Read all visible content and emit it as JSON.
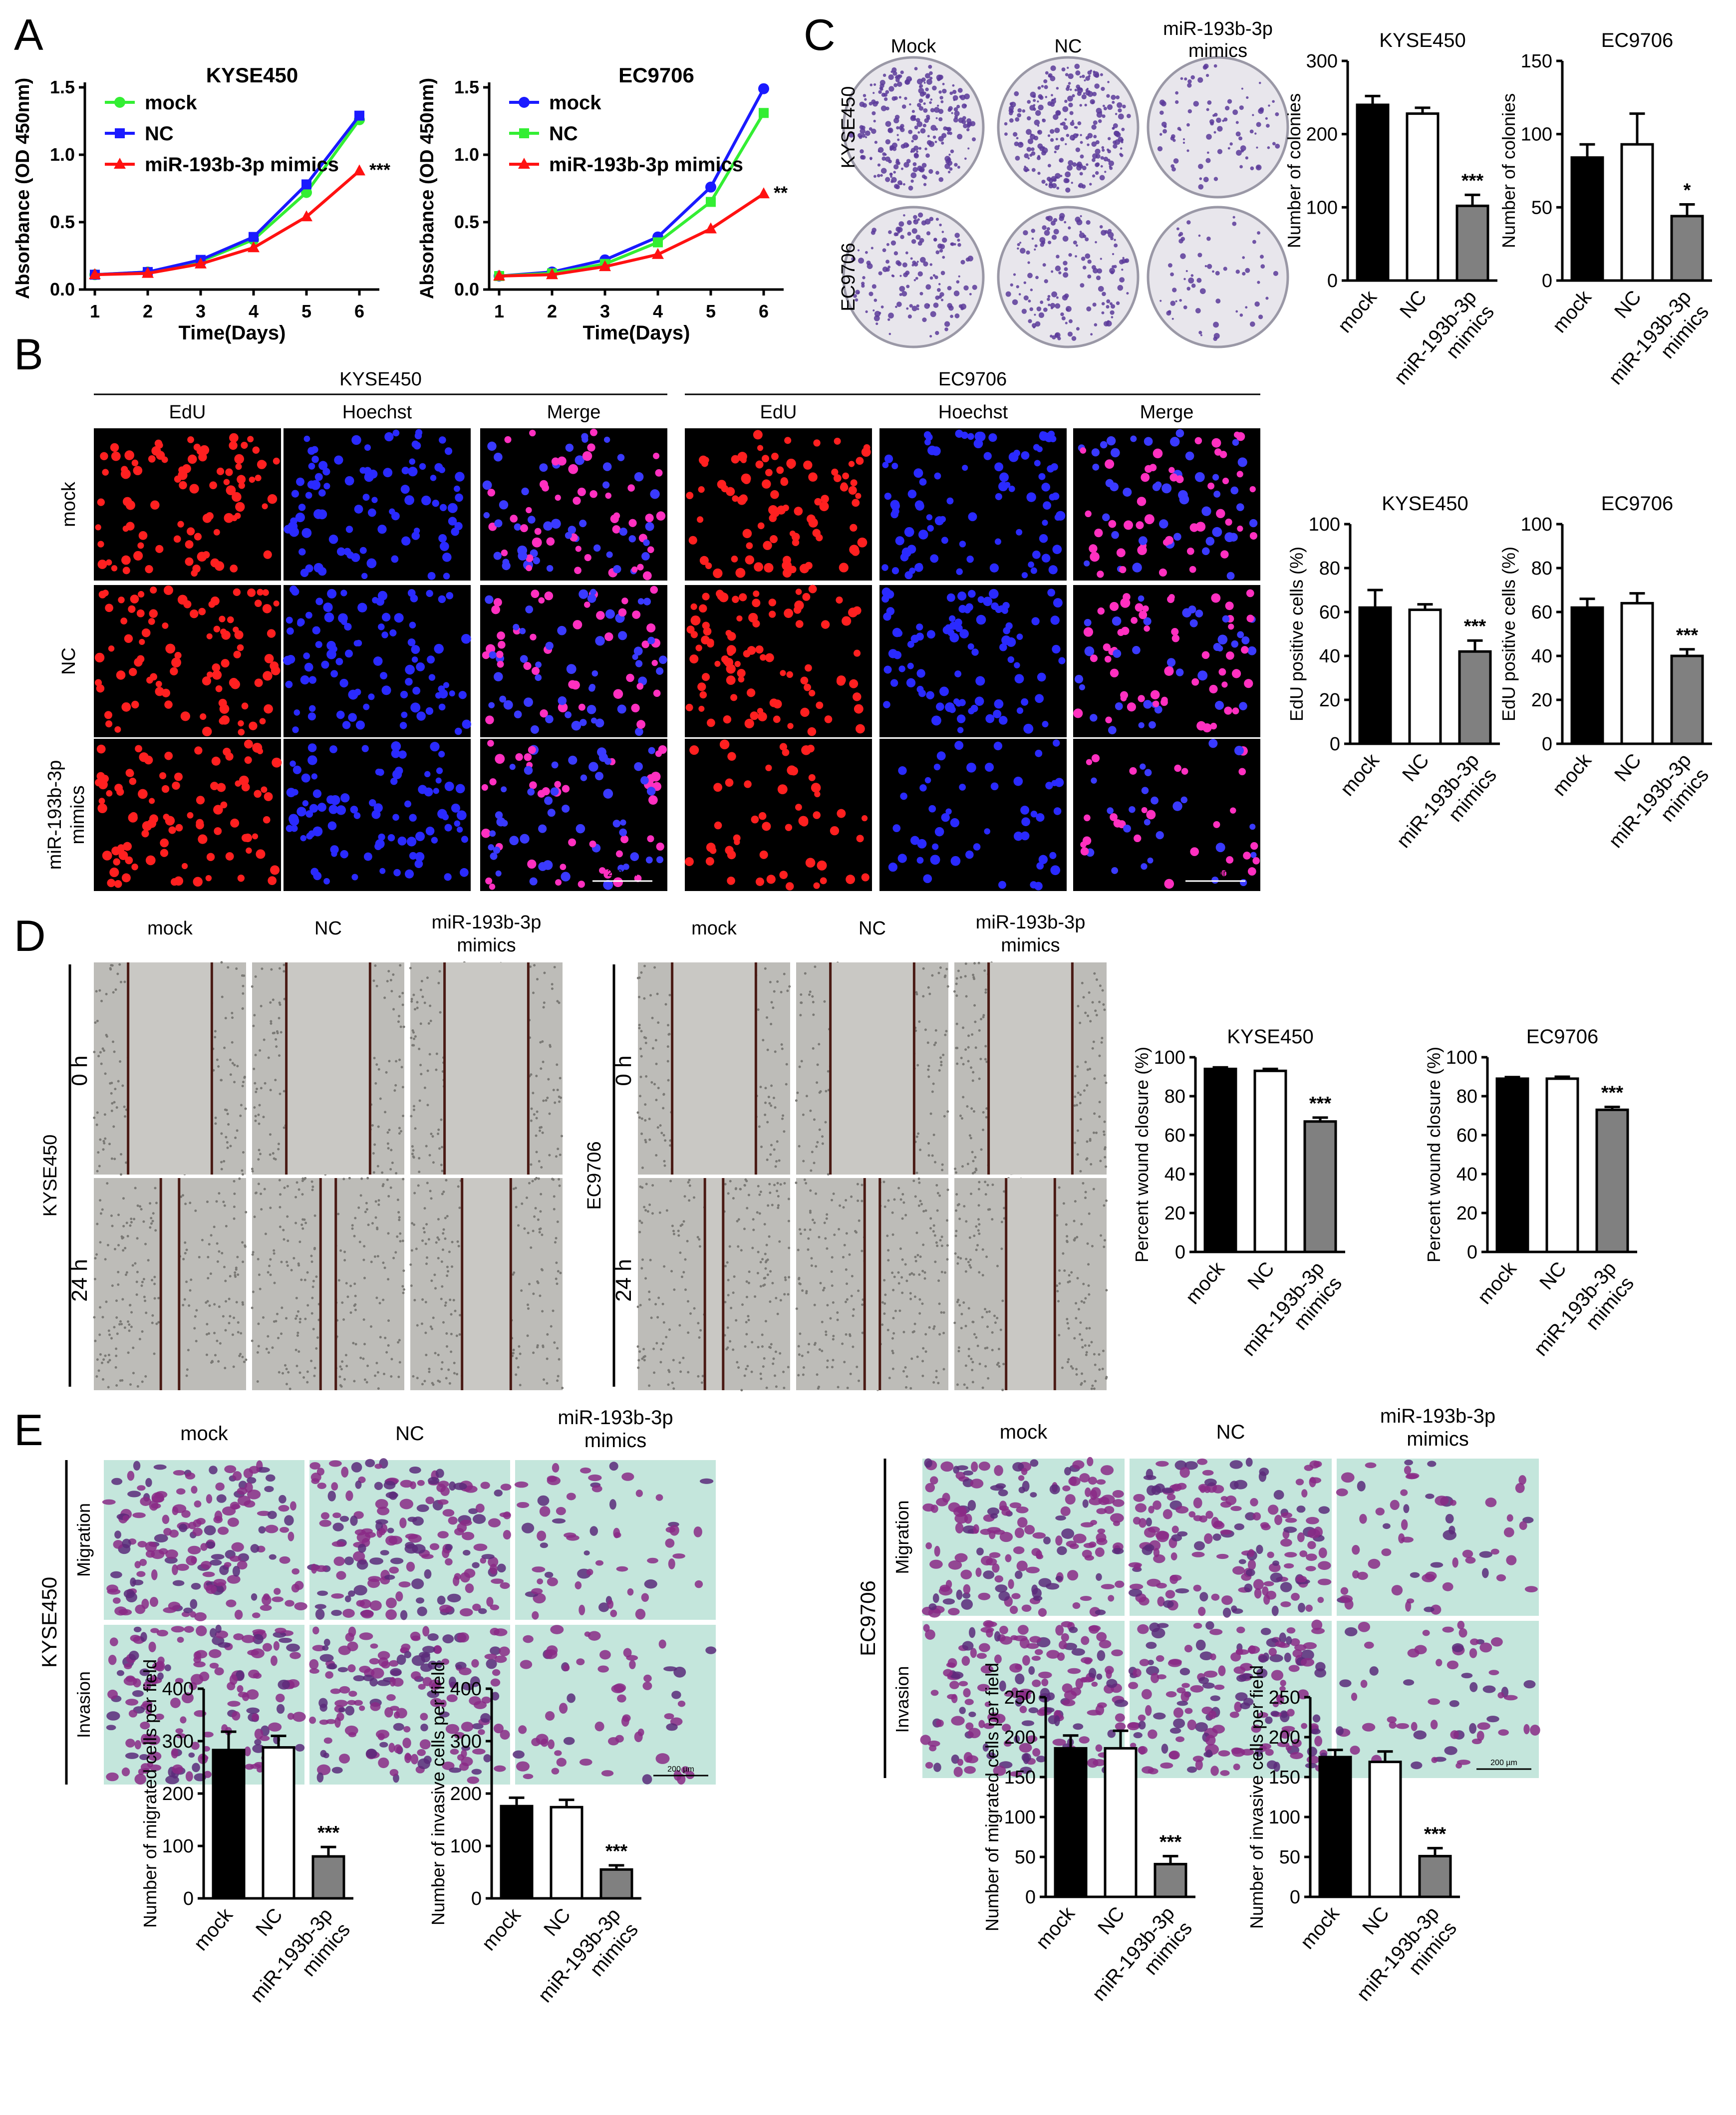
{
  "panel_letters": [
    "A",
    "B",
    "C",
    "D",
    "E"
  ],
  "common": {
    "groups": [
      "mock",
      "NC",
      "miR-193b-3p mimics"
    ],
    "group_tick_lines": [
      [
        "mock"
      ],
      [
        "NC"
      ],
      [
        "miR-193b-3p",
        "mimics"
      ]
    ],
    "mimics_lines": [
      "miR-193b-3p",
      "mimics"
    ],
    "colors": {
      "mock": "#000000",
      "NC": "#ffffff",
      "mimics": "#808080"
    },
    "scale_bar": "200 µm"
  },
  "panelA": [
    {
      "title": "KYSE450",
      "series": [
        {
          "name": "mock",
          "color": "#33ee33",
          "marker": "circle",
          "values": [
            0.11,
            0.13,
            0.21,
            0.37,
            0.72,
            1.26
          ]
        },
        {
          "name": "NC",
          "color": "#1a1aff",
          "marker": "square",
          "values": [
            0.11,
            0.13,
            0.22,
            0.39,
            0.78,
            1.29
          ]
        },
        {
          "name": "miR-193b-3p mimics",
          "color": "#ff1111",
          "marker": "triangle",
          "values": [
            0.11,
            0.12,
            0.19,
            0.31,
            0.54,
            0.88
          ]
        }
      ],
      "sig": "***"
    },
    {
      "title": "EC9706",
      "series": [
        {
          "name": "mock",
          "color": "#1a1aff",
          "marker": "circle",
          "values": [
            0.1,
            0.13,
            0.22,
            0.39,
            0.76,
            1.49
          ]
        },
        {
          "name": "NC",
          "color": "#33ee33",
          "marker": "square",
          "values": [
            0.1,
            0.12,
            0.19,
            0.35,
            0.65,
            1.31
          ]
        },
        {
          "name": "miR-193b-3p mimics",
          "color": "#ff1111",
          "marker": "triangle",
          "values": [
            0.1,
            0.11,
            0.17,
            0.26,
            0.45,
            0.71
          ]
        }
      ],
      "sig": "**"
    }
  ],
  "panelA_axes": {
    "x": [
      1,
      2,
      3,
      4,
      5,
      6
    ],
    "xlabel": "Time(Days)",
    "ylabel": "Absorbance (OD 450nm)",
    "yticks": [
      "0.0",
      "0.5",
      "1.0",
      "1.5"
    ],
    "ylim": [
      0,
      1.5
    ]
  },
  "panelB": {
    "cell_lines": [
      "KYSE450",
      "EC9706"
    ],
    "channels": [
      "EdU",
      "Hoechst",
      "Merge"
    ],
    "rows": [
      "mock",
      "NC",
      "miR-193b-3p mimics"
    ]
  },
  "panelC": {
    "col_labels": [
      "Mock",
      "NC",
      "miR-193b-3p mimics"
    ],
    "row_labels": [
      "KYSE450",
      "EC9706"
    ]
  },
  "panelD": {
    "col_labels": [
      "mock",
      "NC",
      "miR-193b-3p mimics"
    ],
    "cell_lines": [
      "KYSE450",
      "EC9706"
    ],
    "time_points": [
      "0 h",
      "24 h"
    ]
  },
  "panelE": {
    "col_labels": [
      "mock",
      "NC",
      "miR-193b-3p mimics"
    ],
    "cell_lines": [
      "KYSE450",
      "EC9706"
    ],
    "row_labels": [
      "Migration",
      "Invasion"
    ]
  },
  "chart_data": [
    {
      "type": "bar",
      "title": "KYSE450",
      "ylabel": "Number of colonies",
      "categories": [
        "mock",
        "NC",
        "miR-193b-3p mimics"
      ],
      "values": [
        240,
        228,
        102
      ],
      "errors": [
        12,
        8,
        15
      ],
      "ylim": [
        0,
        300
      ],
      "yticks": [
        0,
        100,
        200,
        300
      ],
      "sig": "***"
    },
    {
      "type": "bar",
      "title": "EC9706",
      "ylabel": "Number of colonies",
      "categories": [
        "mock",
        "NC",
        "miR-193b-3p mimics"
      ],
      "values": [
        84,
        93,
        44
      ],
      "errors": [
        9,
        21,
        8
      ],
      "ylim": [
        0,
        150
      ],
      "yticks": [
        0,
        50,
        100,
        150
      ],
      "sig": "*"
    },
    {
      "type": "bar",
      "title": "KYSE450",
      "ylabel": "EdU positive cells (%)",
      "categories": [
        "mock",
        "NC",
        "miR-193b-3p mimics"
      ],
      "values": [
        62,
        61,
        42
      ],
      "errors": [
        8,
        2.5,
        5
      ],
      "ylim": [
        0,
        100
      ],
      "yticks": [
        0,
        20,
        40,
        60,
        80,
        100
      ],
      "sig": "***"
    },
    {
      "type": "bar",
      "title": "EC9706",
      "ylabel": "EdU positive cells (%)",
      "categories": [
        "mock",
        "NC",
        "miR-193b-3p mimics"
      ],
      "values": [
        62,
        64,
        40
      ],
      "errors": [
        4,
        4.5,
        3
      ],
      "ylim": [
        0,
        100
      ],
      "yticks": [
        0,
        20,
        40,
        60,
        80,
        100
      ],
      "sig": "***"
    },
    {
      "type": "bar",
      "title": "KYSE450",
      "ylabel": "Percent wound closure (%)",
      "categories": [
        "mock",
        "NC",
        "miR-193b-3p mimics"
      ],
      "values": [
        94,
        93,
        67
      ],
      "errors": [
        0.8,
        1,
        2
      ],
      "ylim": [
        0,
        100
      ],
      "yticks": [
        0,
        20,
        40,
        60,
        80,
        100
      ],
      "sig": "***"
    },
    {
      "type": "bar",
      "title": "EC9706",
      "ylabel": "Percent wound closure (%)",
      "categories": [
        "mock",
        "NC",
        "miR-193b-3p mimics"
      ],
      "values": [
        89,
        89,
        73
      ],
      "errors": [
        0.8,
        1,
        1.5
      ],
      "ylim": [
        0,
        100
      ],
      "yticks": [
        0,
        20,
        40,
        60,
        80,
        100
      ],
      "sig": "***"
    },
    {
      "type": "bar",
      "title": "",
      "ylabel": "Number of migrated cells per field",
      "categories": [
        "mock",
        "NC",
        "miR-193b-3p mimics"
      ],
      "values": [
        283,
        288,
        80
      ],
      "errors": [
        35,
        22,
        18
      ],
      "ylim": [
        0,
        400
      ],
      "yticks": [
        0,
        100,
        200,
        300,
        400
      ],
      "sig": "***"
    },
    {
      "type": "bar",
      "title": "",
      "ylabel": "Number of invasive cells per field",
      "categories": [
        "mock",
        "NC",
        "miR-193b-3p mimics"
      ],
      "values": [
        176,
        174,
        55
      ],
      "errors": [
        16,
        14,
        8
      ],
      "ylim": [
        0,
        400
      ],
      "yticks": [
        0,
        100,
        200,
        300,
        400
      ],
      "sig": "***"
    },
    {
      "type": "bar",
      "title": "",
      "ylabel": "Number of migrated cells per field",
      "categories": [
        "mock",
        "NC",
        "miR-193b-3p mimics"
      ],
      "values": [
        186,
        186,
        41
      ],
      "errors": [
        16,
        22,
        10
      ],
      "ylim": [
        0,
        250
      ],
      "yticks": [
        0,
        50,
        100,
        150,
        200,
        250
      ],
      "sig": "***"
    },
    {
      "type": "bar",
      "title": "",
      "ylabel": "Number of invasive cells per field",
      "categories": [
        "mock",
        "NC",
        "miR-193b-3p mimics"
      ],
      "values": [
        175,
        169,
        51
      ],
      "errors": [
        9,
        13,
        10
      ],
      "ylim": [
        0,
        250
      ],
      "yticks": [
        0,
        50,
        100,
        150,
        200,
        250
      ],
      "sig": "***"
    }
  ]
}
